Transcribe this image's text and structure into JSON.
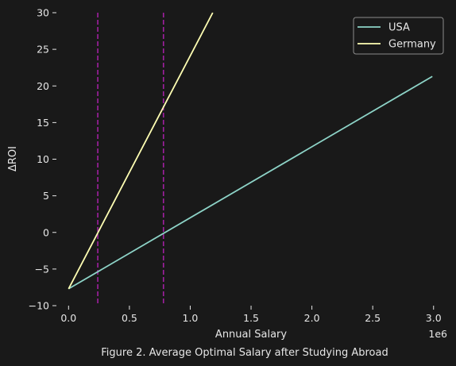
{
  "chart_data": {
    "type": "line",
    "title": "",
    "caption": "Figure 2. Average Optimal Salary after Studying Abroad",
    "xlabel": "Annual Salary",
    "ylabel": "ΔROI",
    "x_offset_text": "1e6",
    "xlim": [
      -100000,
      3080000
    ],
    "ylim": [
      -10,
      30
    ],
    "x_ticks": [
      0,
      500000,
      1000000,
      1500000,
      2000000,
      2500000,
      3000000
    ],
    "x_tick_labels": [
      "0.0",
      "0.5",
      "1.0",
      "1.5",
      "2.0",
      "2.5",
      "3.0"
    ],
    "y_ticks": [
      -10,
      -5,
      0,
      5,
      10,
      15,
      20,
      25,
      30
    ],
    "y_tick_labels": [
      "−10",
      "−5",
      "0",
      "5",
      "10",
      "15",
      "20",
      "25",
      "30"
    ],
    "grid": false,
    "legend_position": "top-right",
    "series": [
      {
        "name": "USA",
        "color": "#8dd3c7",
        "x": [
          0,
          2990000
        ],
        "y": [
          -7.7,
          21.3
        ]
      },
      {
        "name": "Germany",
        "color": "#ffffb3",
        "x": [
          0,
          1185000
        ],
        "y": [
          -7.7,
          30
        ]
      }
    ],
    "vlines": [
      {
        "x": 240000,
        "color": "#a020a0",
        "style": "dashed"
      },
      {
        "x": 780000,
        "color": "#a020a0",
        "style": "dashed"
      }
    ]
  }
}
